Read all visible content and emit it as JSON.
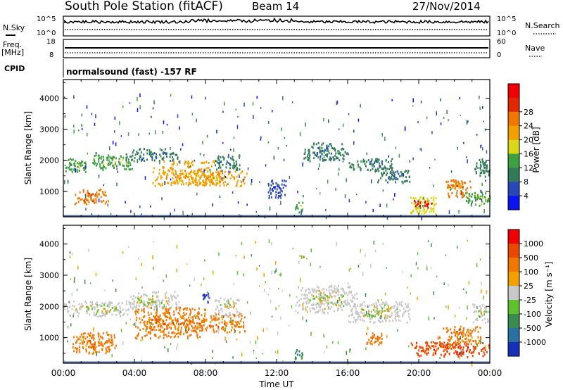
{
  "header": {
    "station": "South Pole Station (fitACF)",
    "beam": "Beam 14",
    "date": "27/Nov/2014"
  },
  "top_panels": {
    "nsky_label": "N.Sky",
    "nsky_ticks": [
      "10^5",
      "10^0"
    ],
    "nsearch_label": "N.Search",
    "nsearch_ticks": [
      "10^5",
      "10^0"
    ],
    "freq_label": "Freq.",
    "freq_unit": "[MHz]",
    "freq_ticks": [
      "18",
      "8"
    ],
    "nave_label": "Nave",
    "nave_ticks": [
      "60",
      "0"
    ],
    "cpid_label": "CPID",
    "cpid_text": "normalsound (fast) -157 RF"
  },
  "chart_data": [
    {
      "type": "heatmap",
      "title": "",
      "xlabel": "",
      "ylabel": "Slant Range [km]",
      "xlim": [
        0,
        24
      ],
      "ylim": [
        180,
        4600
      ],
      "x_tick_labels": [],
      "y_ticks": [
        1000,
        2000,
        3000,
        4000
      ],
      "y_tick_labels": [
        "1000",
        "2000",
        "3000",
        "4000"
      ],
      "colorbar_label": "Power [dB]",
      "colorbar_ticks": [
        "4",
        "8",
        "12",
        "16",
        "20",
        "24",
        "28"
      ],
      "colorbar_colors": [
        "#0a14f0",
        "#2848b8",
        "#327a5a",
        "#3ea040",
        "#d8d818",
        "#f0a000",
        "#f07800",
        "#e02800",
        "#f00000"
      ],
      "echo_bands": [
        {
          "t0": 0.0,
          "t1": 1.3,
          "r0": 1650,
          "r1": 2100,
          "level": 3
        },
        {
          "t0": 0.6,
          "t1": 2.5,
          "r0": 600,
          "r1": 1100,
          "level": 6
        },
        {
          "t0": 1.5,
          "t1": 4.0,
          "r0": 1700,
          "r1": 2200,
          "level": 3
        },
        {
          "t0": 3.5,
          "t1": 6.5,
          "r0": 2000,
          "r1": 2400,
          "level": 2
        },
        {
          "t0": 5.0,
          "t1": 8.5,
          "r0": 1200,
          "r1": 2000,
          "level": 5
        },
        {
          "t0": 7.0,
          "t1": 10.3,
          "r0": 1200,
          "r1": 1700,
          "level": 5
        },
        {
          "t0": 8.5,
          "t1": 10.0,
          "r0": 1700,
          "r1": 2200,
          "level": 2
        },
        {
          "t0": 11.5,
          "t1": 12.5,
          "r0": 800,
          "r1": 1400,
          "level": 1
        },
        {
          "t0": 13.0,
          "t1": 13.5,
          "r0": 300,
          "r1": 700,
          "level": 3
        },
        {
          "t0": 13.5,
          "t1": 16.0,
          "r0": 2000,
          "r1": 2600,
          "level": 2
        },
        {
          "t0": 16.0,
          "t1": 18.5,
          "r0": 1700,
          "r1": 2100,
          "level": 2
        },
        {
          "t0": 17.5,
          "t1": 19.5,
          "r0": 1300,
          "r1": 1800,
          "level": 2
        },
        {
          "t0": 19.5,
          "t1": 21.0,
          "r0": 300,
          "r1": 900,
          "level": 4
        },
        {
          "t0": 19.7,
          "t1": 20.8,
          "r0": 500,
          "r1": 750,
          "level": 8
        },
        {
          "t0": 21.5,
          "t1": 23.0,
          "r0": 800,
          "r1": 1400,
          "level": 6
        },
        {
          "t0": 22.5,
          "t1": 24.0,
          "r0": 500,
          "r1": 1000,
          "level": 3
        },
        {
          "t0": 23.0,
          "t1": 24.0,
          "r0": 1500,
          "r1": 2100,
          "level": 2
        }
      ]
    },
    {
      "type": "heatmap",
      "title": "",
      "xlabel": "Time UT",
      "ylabel": "Slant Range [km]",
      "xlim": [
        0,
        24
      ],
      "ylim": [
        180,
        4600
      ],
      "x_ticks": [
        0,
        4,
        8,
        12,
        16,
        20,
        24
      ],
      "x_tick_labels": [
        "00:00",
        "04:00",
        "08:00",
        "12:00",
        "16:00",
        "20:00",
        "00:00"
      ],
      "y_ticks": [
        1000,
        2000,
        3000,
        4000
      ],
      "y_tick_labels": [
        "1000",
        "2000",
        "3000",
        "4000"
      ],
      "colorbar_label": "Velocity [m s⁻¹]",
      "colorbar_ticks": [
        "1000",
        "500",
        "100",
        "25",
        "-25",
        "-100",
        "-500",
        "-1000"
      ],
      "colorbar_colors": [
        "#1830b8",
        "#2a70a0",
        "#3c8a50",
        "#60c030",
        "#c8c8c8",
        "#f0a000",
        "#f07800",
        "#e84800",
        "#f00000"
      ],
      "echo_bands": [
        {
          "t0": 0.0,
          "t1": 4.0,
          "r0": 1700,
          "r1": 2200,
          "level": 4
        },
        {
          "t0": 0.5,
          "t1": 3.0,
          "r0": 500,
          "r1": 1200,
          "level": 6
        },
        {
          "t0": 3.5,
          "t1": 6.5,
          "r0": 1900,
          "r1": 2500,
          "level": 4
        },
        {
          "t0": 4.0,
          "t1": 8.0,
          "r0": 1000,
          "r1": 2000,
          "level": 6
        },
        {
          "t0": 7.0,
          "t1": 10.2,
          "r0": 1200,
          "r1": 1800,
          "level": 6
        },
        {
          "t0": 8.5,
          "t1": 10.0,
          "r0": 1700,
          "r1": 2300,
          "level": 4
        },
        {
          "t0": 7.7,
          "t1": 8.2,
          "r0": 2100,
          "r1": 2500,
          "level": 0
        },
        {
          "t0": 13.0,
          "t1": 16.5,
          "r0": 1800,
          "r1": 2700,
          "level": 4
        },
        {
          "t0": 16.0,
          "t1": 19.5,
          "r0": 1500,
          "r1": 2200,
          "level": 4
        },
        {
          "t0": 17.0,
          "t1": 18.0,
          "r0": 800,
          "r1": 1200,
          "level": 6
        },
        {
          "t0": 19.5,
          "t1": 24.0,
          "r0": 400,
          "r1": 900,
          "level": 7
        },
        {
          "t0": 21.0,
          "t1": 23.5,
          "r0": 800,
          "r1": 1400,
          "level": 6
        },
        {
          "t0": 23.0,
          "t1": 24.0,
          "r0": 1500,
          "r1": 2100,
          "level": 4
        },
        {
          "t0": 13.0,
          "t1": 13.5,
          "r0": 300,
          "r1": 700,
          "level": 2
        }
      ]
    }
  ]
}
